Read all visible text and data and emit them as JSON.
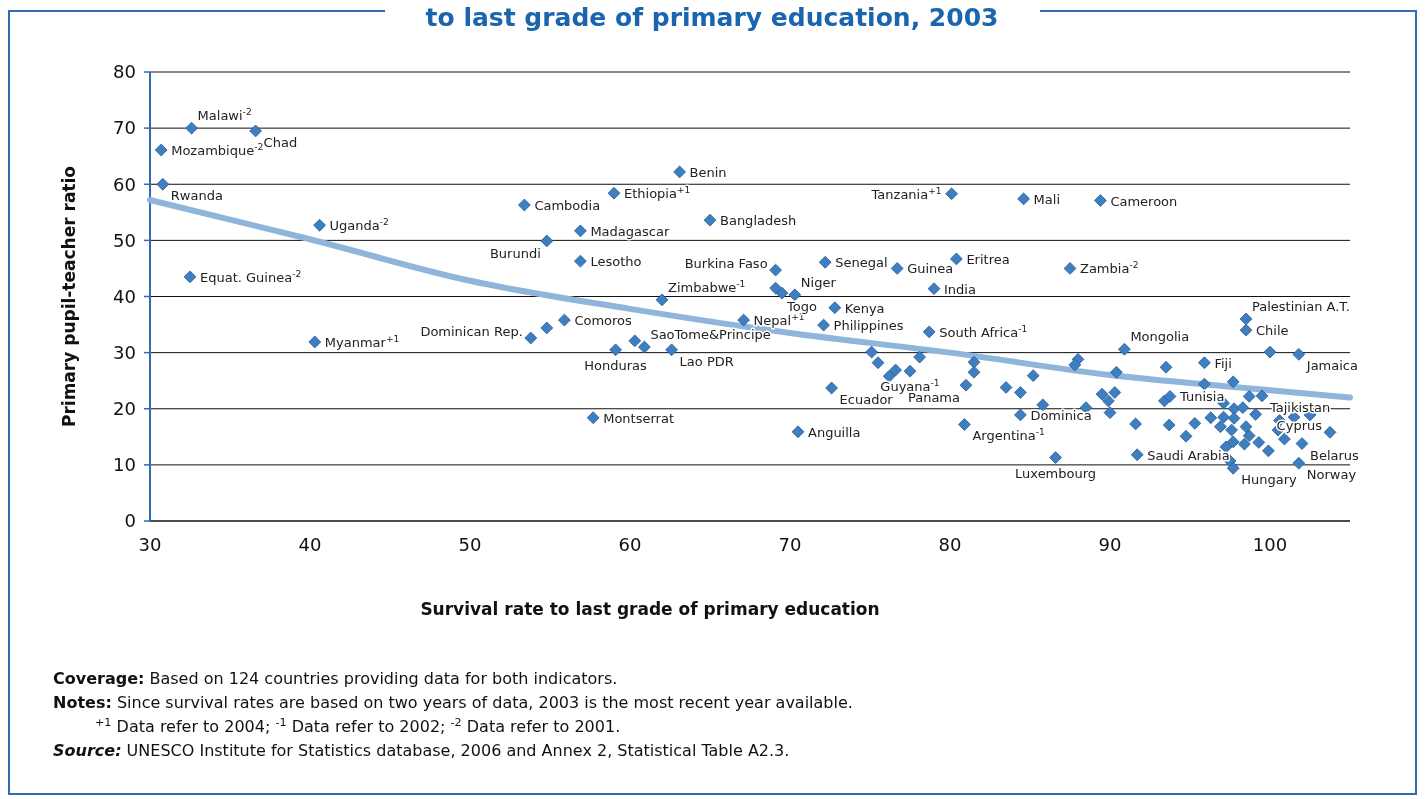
{
  "chart_data": {
    "type": "scatter",
    "title": "to last grade of primary education, 2003",
    "xlabel": "Survival rate to last grade of primary education",
    "ylabel": "Primary pupil-teacher ratio",
    "xlim": [
      30,
      105
    ],
    "xticks": [
      30,
      40,
      50,
      60,
      70,
      80,
      90,
      100
    ],
    "ylim": [
      0,
      80
    ],
    "yticks": [
      0,
      10,
      20,
      30,
      40,
      50,
      60,
      70,
      80
    ],
    "grid": "y",
    "marker": "diamond",
    "series": [
      {
        "color": "#3d7fc1",
        "x": [
          32.6,
          36.6,
          30.7,
          30.8,
          40.6,
          32.5,
          40.3,
          53.4,
          54.8,
          53.8,
          54.8,
          55.9,
          59.0,
          63.1,
          56.9,
          56.9,
          65.0,
          62.0,
          59.1,
          60.3,
          60.9,
          62.6,
          67.1,
          57.7,
          70.5,
          69.1,
          69.1,
          69.5,
          70.3,
          72.2,
          72.8,
          72.1,
          72.6,
          75.1,
          75.5,
          76.2,
          76.6,
          77.5,
          78.1,
          80.1,
          84.6,
          89.4,
          76.7,
          80.4,
          87.5,
          79.0,
          78.7,
          81.5,
          81.5,
          81.0,
          83.5,
          84.4,
          85.2,
          84.4,
          85.8,
          80.9,
          86.6,
          88.0,
          87.8,
          90.4,
          90.9,
          89.5,
          90.3,
          89.9,
          88.5,
          90.0,
          91.6,
          91.7,
          98.5,
          98.5,
          100.0,
          101.8,
          93.5,
          95.9,
          95.9,
          97.7,
          93.4,
          93.75,
          93.7,
          94.75,
          95.3,
          96.3,
          96.9,
          97.1,
          97.1,
          97.75,
          97.75,
          98.3,
          98.7,
          99.5,
          99.1,
          97.6,
          98.5,
          98.7,
          97.7,
          98.4,
          97.25,
          99.3,
          99.9,
          100.6,
          100.5,
          100.9,
          101.5,
          102.5,
          103.75,
          102.0,
          101.8,
          97.5,
          97.7
        ],
        "values": [
          70.0,
          69.5,
          66.1,
          60.0,
          52.7,
          43.5,
          31.9,
          56.3,
          49.9,
          32.6,
          34.4,
          35.8,
          58.4,
          62.2,
          51.7,
          46.3,
          53.6,
          39.4,
          30.5,
          32.1,
          31.0,
          30.5,
          35.8,
          18.4,
          15.9,
          44.7,
          41.5,
          40.6,
          40.3,
          46.1,
          38.0,
          34.9,
          23.7,
          30.1,
          28.2,
          25.8,
          26.9,
          26.7,
          29.2,
          58.3,
          57.4,
          57.1,
          45.0,
          46.7,
          45.0,
          41.4,
          33.7,
          28.3,
          26.5,
          24.2,
          23.8,
          22.9,
          25.9,
          18.9,
          20.7,
          17.2,
          11.3,
          28.8,
          27.8,
          26.5,
          30.6,
          22.6,
          22.9,
          21.4,
          20.2,
          19.3,
          17.3,
          11.8,
          36.0,
          34.0,
          30.1,
          29.7,
          27.4,
          28.2,
          24.4,
          24.8,
          21.4,
          22.2,
          17.1,
          15.1,
          17.4,
          18.4,
          16.8,
          18.5,
          21.0,
          20.0,
          18.3,
          20.2,
          22.2,
          22.3,
          19.0,
          16.2,
          16.8,
          15.2,
          14.1,
          13.7,
          13.2,
          14.0,
          12.5,
          17.9,
          16.2,
          14.6,
          18.5,
          18.9,
          15.8,
          13.8,
          10.3,
          10.7,
          9.4
        ]
      },
      {
        "type": "line",
        "marker": "none",
        "color": "#8fb5da",
        "x": [
          30,
          40,
          50,
          60,
          70,
          80,
          90,
          100,
          105
        ],
        "values": [
          57.2,
          50.2,
          42.8,
          37.8,
          33.5,
          30.0,
          26.0,
          23.3,
          22.0
        ]
      }
    ],
    "annotations": [
      {
        "text": "Malawi$^{-2}$",
        "x": 32.6,
        "y": 70.0
      },
      {
        "text": "Chad",
        "x": 36.6,
        "y": 69.5
      },
      {
        "text": "Mozambique$^{-2}$",
        "x": 30.7,
        "y": 66.1
      },
      {
        "text": "Rwanda",
        "x": 30.8,
        "y": 60.0
      },
      {
        "text": "Uganda$^{-2}$",
        "x": 40.6,
        "y": 52.7
      },
      {
        "text": "Equat. Guinea$^{-2}$",
        "x": 32.5,
        "y": 43.5
      },
      {
        "text": "Myanmar$^{+1}$",
        "x": 40.3,
        "y": 31.9
      },
      {
        "text": "Cambodia",
        "x": 53.4,
        "y": 56.3
      },
      {
        "text": "Burundi",
        "x": 54.8,
        "y": 49.9
      },
      {
        "text": "Dominican Rep.",
        "x": 53.8,
        "y": 32.6
      },
      {
        "text": "Comoros",
        "x": 55.9,
        "y": 35.8
      },
      {
        "text": "Ethiopia$^{+1}$",
        "x": 59.0,
        "y": 58.4
      },
      {
        "text": "Benin",
        "x": 63.1,
        "y": 62.2
      },
      {
        "text": "Madagascar",
        "x": 56.9,
        "y": 51.7
      },
      {
        "text": "Lesotho",
        "x": 56.9,
        "y": 46.3
      },
      {
        "text": "Bangladesh",
        "x": 65.0,
        "y": 53.6
      },
      {
        "text": "Zimbabwe$^{-1}$",
        "x": 62.0,
        "y": 39.4
      },
      {
        "text": "Honduras",
        "x": 59.1,
        "y": 30.5
      },
      {
        "text": "SaoTome&Principe",
        "x": 60.9,
        "y": 31.0
      },
      {
        "text": "Lao PDR",
        "x": 62.6,
        "y": 30.5
      },
      {
        "text": "Nepal$^{+1}$",
        "x": 67.1,
        "y": 35.8
      },
      {
        "text": "Montserrat",
        "x": 57.7,
        "y": 18.4
      },
      {
        "text": "Anguilla",
        "x": 70.5,
        "y": 15.9
      },
      {
        "text": "Burkina Faso",
        "x": 69.1,
        "y": 44.7
      },
      {
        "text": "Niger",
        "x": 70.3,
        "y": 40.3
      },
      {
        "text": "Togo",
        "x": 69.5,
        "y": 40.6
      },
      {
        "text": "Senegal",
        "x": 72.2,
        "y": 46.1
      },
      {
        "text": "Kenya",
        "x": 72.8,
        "y": 38.0
      },
      {
        "text": "Philippines",
        "x": 72.1,
        "y": 34.9
      },
      {
        "text": "Ecuador",
        "x": 72.6,
        "y": 23.7
      },
      {
        "text": "Tanzania$^{+1}$",
        "x": 80.1,
        "y": 58.3
      },
      {
        "text": "Mali",
        "x": 84.6,
        "y": 57.4
      },
      {
        "text": "Cameroon",
        "x": 89.4,
        "y": 57.1
      },
      {
        "text": "Guinea",
        "x": 76.7,
        "y": 45.0
      },
      {
        "text": "Eritrea",
        "x": 80.4,
        "y": 46.7
      },
      {
        "text": "Zambia$^{-2}$",
        "x": 87.5,
        "y": 45.0
      },
      {
        "text": "India",
        "x": 79.0,
        "y": 41.4
      },
      {
        "text": "South Africa$^{-1}$",
        "x": 78.7,
        "y": 33.7
      },
      {
        "text": "Guyana$^{-1}$",
        "x": 77.5,
        "y": 26.7
      },
      {
        "text": "Panama",
        "x": 81.0,
        "y": 24.2
      },
      {
        "text": "Dominica",
        "x": 84.4,
        "y": 18.9
      },
      {
        "text": "Argentina$^{-1}$",
        "x": 80.9,
        "y": 17.2
      },
      {
        "text": "Luxembourg",
        "x": 86.6,
        "y": 11.3
      },
      {
        "text": "Mongolia",
        "x": 90.9,
        "y": 30.6
      },
      {
        "text": "Saudi Arabia",
        "x": 91.7,
        "y": 11.8
      },
      {
        "text": "Palestinian A.T.",
        "x": 98.5,
        "y": 36.0
      },
      {
        "text": "Chile",
        "x": 98.5,
        "y": 34.0
      },
      {
        "text": "Fiji",
        "x": 95.9,
        "y": 28.2
      },
      {
        "text": "Jamaica",
        "x": 101.8,
        "y": 29.7
      },
      {
        "text": "Tunisia",
        "x": 93.75,
        "y": 22.2
      },
      {
        "text": "Tajikistan",
        "x": 99.5,
        "y": 22.3
      },
      {
        "text": "Cyprus",
        "x": 103.75,
        "y": 15.8
      },
      {
        "text": "Belarus",
        "x": 102.0,
        "y": 13.8
      },
      {
        "text": "Hungary",
        "x": 97.7,
        "y": 9.4
      },
      {
        "text": "Norway",
        "x": 101.8,
        "y": 10.3
      },
      "Coverage: Based on 124 countries providing data for both indicators.",
      "Notes: Since survival rates are based on two years of data, 2003 is the most recent year available.",
      "$^{+1}$ Data refer to 2004; $^{-1}$ Data refer to 2002; $^{-2}$ Data refer to 2001.",
      "Source: UNESCO Institute for Statistics database, 2006 and Annex 2, Statistical Table A2.3."
    ]
  }
}
